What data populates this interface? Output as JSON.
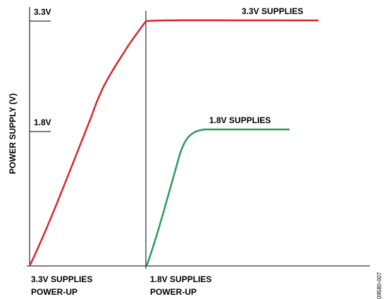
{
  "axis_title": "POWER SUPPLY (V)",
  "levels": [
    "3.3V",
    "1.8V"
  ],
  "curves": [
    {
      "label": "3.3V SUPPLIES",
      "color": "#d9262e"
    },
    {
      "label": "1.8V SUPPLIES",
      "color": "#2e9a5c"
    }
  ],
  "events": [
    {
      "line1": "3.3V SUPPLIES",
      "line2": "POWER-UP"
    },
    {
      "line1": "1.8V SUPPLIES",
      "line2": "POWER-UP"
    }
  ],
  "figure_code": "09580-007"
}
